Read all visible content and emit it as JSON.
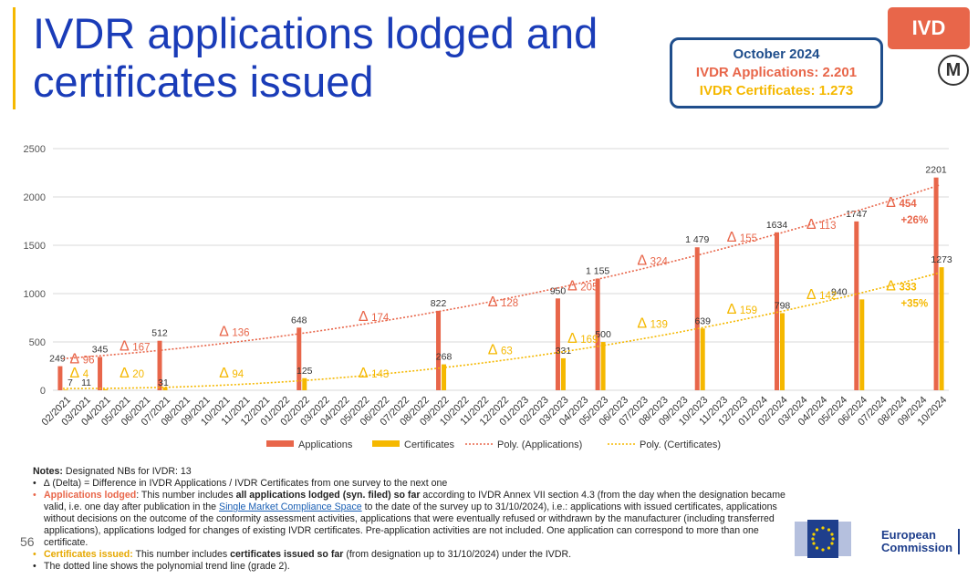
{
  "title": "IVDR applications lodged and certificates issued",
  "badge": "IVD",
  "summary": {
    "line1": "October 2024",
    "line2": "IVDR Applications: 2.201",
    "line3": "IVDR Certificates: 1.273"
  },
  "logo_letter": "M",
  "page_number": "56",
  "eu_text": [
    "European",
    "Commission"
  ],
  "colors": {
    "applications": "#e8664a",
    "certificates": "#f5b800",
    "title": "#1a3cb8"
  },
  "chart_data": {
    "type": "bar",
    "categories": [
      "02/2021",
      "03/2021",
      "04/2021",
      "05/2021",
      "06/2021",
      "07/2021",
      "08/2021",
      "09/2021",
      "10/2021",
      "11/2021",
      "12/2021",
      "01/2022",
      "02/2022",
      "03/2022",
      "04/2022",
      "05/2022",
      "06/2022",
      "07/2022",
      "08/2022",
      "09/2022",
      "10/2022",
      "11/2022",
      "12/2022",
      "01/2023",
      "02/2023",
      "03/2023",
      "04/2023",
      "05/2023",
      "06/2023",
      "07/2023",
      "08/2023",
      "09/2023",
      "10/2023",
      "11/2023",
      "12/2023",
      "01/2024",
      "02/2024",
      "03/2024",
      "04/2024",
      "05/2024",
      "06/2024",
      "07/2024",
      "08/2024",
      "09/2024",
      "10/2024"
    ],
    "series": [
      {
        "name": "Applications",
        "values": [
          249,
          null,
          345,
          null,
          null,
          512,
          null,
          null,
          null,
          null,
          null,
          null,
          648,
          null,
          null,
          null,
          null,
          null,
          null,
          822,
          null,
          null,
          null,
          null,
          null,
          950,
          null,
          1155,
          null,
          null,
          null,
          null,
          1479,
          null,
          null,
          null,
          1634,
          null,
          null,
          null,
          1747,
          null,
          null,
          null,
          2201
        ],
        "labels": [
          "249",
          null,
          "345",
          null,
          null,
          "512",
          null,
          null,
          null,
          null,
          null,
          null,
          "648",
          null,
          null,
          null,
          null,
          null,
          null,
          "822",
          null,
          null,
          null,
          null,
          null,
          "950",
          null,
          "1 155",
          null,
          null,
          null,
          null,
          "1 479",
          null,
          null,
          null,
          "1634",
          null,
          null,
          null,
          "1747",
          null,
          null,
          null,
          "2201"
        ]
      },
      {
        "name": "Certificates",
        "values": [
          7,
          null,
          11,
          null,
          null,
          31,
          null,
          null,
          null,
          null,
          null,
          null,
          125,
          null,
          null,
          null,
          null,
          null,
          null,
          268,
          null,
          null,
          null,
          null,
          null,
          331,
          null,
          500,
          null,
          null,
          null,
          null,
          639,
          null,
          null,
          null,
          798,
          null,
          null,
          null,
          940,
          null,
          null,
          null,
          1273
        ],
        "labels": [
          "7",
          null,
          "11",
          null,
          null,
          "31",
          null,
          null,
          null,
          null,
          null,
          null,
          "125",
          null,
          null,
          null,
          null,
          null,
          null,
          "268",
          null,
          null,
          null,
          null,
          null,
          "331",
          null,
          "500",
          null,
          null,
          null,
          null,
          "639",
          null,
          null,
          null,
          "798",
          null,
          null,
          null,
          "940",
          null,
          null,
          null,
          "1273"
        ]
      }
    ],
    "trendlines": [
      "Poly. (Applications)",
      "Poly. (Certificates)"
    ],
    "legend": [
      "Applications",
      "Certificates",
      "Poly. (Applications)",
      "Poly. (Certificates)"
    ],
    "legend_position": "bottom",
    "yticks": [
      "0",
      "500",
      "1000",
      "1500",
      "2000",
      "2500"
    ],
    "ylim": [
      0,
      2500
    ],
    "grid": true,
    "delta_app": [
      {
        "between": [
          0,
          2
        ],
        "text": "96"
      },
      {
        "between": [
          2,
          5
        ],
        "text": "167"
      },
      {
        "between": [
          5,
          12
        ],
        "text": "136"
      },
      {
        "between": [
          12,
          19
        ],
        "text": "174"
      },
      {
        "between": [
          19,
          25
        ],
        "text": "128"
      },
      {
        "between": [
          25,
          27
        ],
        "text": "205"
      },
      {
        "between": [
          27,
          32
        ],
        "text": "324"
      },
      {
        "between": [
          32,
          36
        ],
        "text": "155"
      },
      {
        "between": [
          36,
          40
        ],
        "text": "113"
      },
      {
        "between": [
          40,
          44
        ],
        "text": "454",
        "pct": "+26%"
      }
    ],
    "delta_cert": [
      {
        "between": [
          0,
          2
        ],
        "text": "4"
      },
      {
        "between": [
          2,
          5
        ],
        "text": "20"
      },
      {
        "between": [
          5,
          12
        ],
        "text": "94"
      },
      {
        "between": [
          12,
          19
        ],
        "text": "143"
      },
      {
        "between": [
          19,
          25
        ],
        "text": "63"
      },
      {
        "between": [
          25,
          27
        ],
        "text": "169"
      },
      {
        "between": [
          27,
          32
        ],
        "text": "139"
      },
      {
        "between": [
          32,
          36
        ],
        "text": "159"
      },
      {
        "between": [
          36,
          40
        ],
        "text": "142"
      },
      {
        "between": [
          40,
          44
        ],
        "text": "333",
        "pct": "+35%"
      }
    ],
    "delta_symbol": "∆"
  },
  "notes": {
    "heading_bold": "Notes:",
    "heading_rest": " Designated NBs for IVDR: 13",
    "delta_note": "∆ (Delta) = Difference in IVDR Applications / IVDR Certificates from one survey to the next one",
    "app_label": "Applications lodged",
    "app_text1": ": This number includes ",
    "app_bold": "all applications lodged (syn. filed) so far",
    "app_text2": " according to IVDR Annex VII section 4.3 (from the day when the designation became valid, i.e. one day after publication in the ",
    "app_link": "Single Market Compliance Space",
    "app_text3": " to the date of the survey up to 31/10/2024), i.e.: applications with issued certificates, applications without decisions on the outcome of the conformity assessment activities, applications that were eventually refused or withdrawn by the manufacturer (including transferred applications), applications lodged for changes of existing IVDR certificates. Pre-application activities are not included. One application can correspond to more than one certificate.",
    "cert_label": "Certificates issued:",
    "cert_text1": " This number includes ",
    "cert_bold": "certificates issued so far",
    "cert_text2": " (from designation up to 31/10/2024) under the IVDR.",
    "poly_note": "The dotted line shows the polynomial trend line (grade 2)."
  }
}
